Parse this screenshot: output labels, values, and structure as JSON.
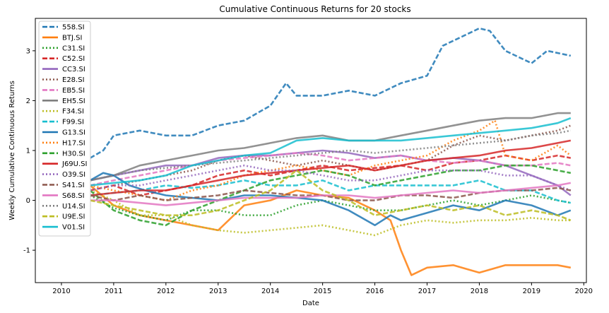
{
  "chart_data": {
    "type": "line",
    "title": "Cumulative Continuous Returns for 20 stocks",
    "xlabel": "Date",
    "ylabel": "Weekly Cumulative Continuous Returns",
    "xlim": [
      2009.5,
      2020.05
    ],
    "ylim": [
      -1.65,
      3.65
    ],
    "xticks": [
      "2010",
      "2011",
      "2012",
      "2013",
      "2014",
      "2015",
      "2016",
      "2017",
      "2018",
      "2019",
      "2020"
    ],
    "yticks": [
      "-1",
      "0",
      "1",
      "2",
      "3"
    ],
    "grid": false,
    "legend_position": "top-left",
    "series": [
      {
        "name": "558.SI",
        "color": "#1f77b4",
        "dash": "dashed",
        "x": [
          2010.55,
          2010.8,
          2011.0,
          2011.5,
          2012.0,
          2012.5,
          2013.0,
          2013.5,
          2014.0,
          2014.3,
          2014.5,
          2015.0,
          2015.5,
          2016.0,
          2016.5,
          2017.0,
          2017.3,
          2017.7,
          2018.0,
          2018.2,
          2018.5,
          2019.0,
          2019.3,
          2019.75
        ],
        "y": [
          0.85,
          1.0,
          1.3,
          1.4,
          1.3,
          1.3,
          1.5,
          1.6,
          1.9,
          2.35,
          2.1,
          2.1,
          2.2,
          2.1,
          2.35,
          2.5,
          3.1,
          3.3,
          3.45,
          3.4,
          3.0,
          2.75,
          3.0,
          2.9
        ]
      },
      {
        "name": "BTJ.SI",
        "color": "#ff7f0e",
        "dash": "solid",
        "x": [
          2010.55,
          2011.0,
          2011.5,
          2012.0,
          2012.5,
          2013.0,
          2013.5,
          2014.0,
          2014.5,
          2015.0,
          2015.5,
          2016.0,
          2016.3,
          2016.5,
          2016.7,
          2017.0,
          2017.5,
          2018.0,
          2018.5,
          2019.0,
          2019.5,
          2019.75
        ],
        "y": [
          0.3,
          -0.1,
          -0.3,
          -0.4,
          -0.5,
          -0.6,
          -0.1,
          0.0,
          0.2,
          0.1,
          0.05,
          -0.2,
          -0.4,
          -1.0,
          -1.5,
          -1.35,
          -1.3,
          -1.45,
          -1.3,
          -1.3,
          -1.3,
          -1.35
        ]
      },
      {
        "name": "C31.SI",
        "color": "#2ca02c",
        "dash": "dotted",
        "x": [
          2010.55,
          2011.0,
          2011.5,
          2012.0,
          2012.5,
          2013.0,
          2013.5,
          2014.0,
          2014.5,
          2015.0,
          2015.5,
          2016.0,
          2016.5,
          2017.0,
          2017.5,
          2018.0,
          2018.5,
          2019.0,
          2019.5,
          2019.75
        ],
        "y": [
          0.1,
          -0.15,
          -0.3,
          -0.4,
          -0.2,
          -0.2,
          -0.3,
          -0.3,
          -0.1,
          0.0,
          -0.1,
          -0.2,
          -0.2,
          -0.1,
          0.0,
          -0.1,
          0.0,
          0.1,
          0.0,
          -0.05
        ]
      },
      {
        "name": "C52.SI",
        "color": "#d62728",
        "dash": "dashed",
        "x": [
          2010.55,
          2011.0,
          2011.5,
          2012.0,
          2012.5,
          2013.0,
          2013.5,
          2014.0,
          2014.5,
          2015.0,
          2015.5,
          2016.0,
          2016.5,
          2017.0,
          2017.5,
          2018.0,
          2018.5,
          2019.0,
          2019.5,
          2019.75
        ],
        "y": [
          0.2,
          0.3,
          0.1,
          0.2,
          0.3,
          0.5,
          0.6,
          0.5,
          0.6,
          0.7,
          0.6,
          0.65,
          0.7,
          0.6,
          0.75,
          0.8,
          0.9,
          0.8,
          0.9,
          0.85
        ]
      },
      {
        "name": "CC3.SI",
        "color": "#9467bd",
        "dash": "solid",
        "x": [
          2010.55,
          2011.0,
          2011.5,
          2012.0,
          2012.5,
          2013.0,
          2013.5,
          2014.0,
          2014.5,
          2015.0,
          2015.5,
          2016.0,
          2016.5,
          2017.0,
          2017.5,
          2018.0,
          2018.5,
          2019.0,
          2019.5,
          2019.75
        ],
        "y": [
          0.4,
          0.5,
          0.6,
          0.7,
          0.7,
          0.85,
          0.9,
          0.9,
          0.95,
          1.0,
          0.95,
          0.85,
          0.9,
          0.8,
          0.85,
          0.8,
          0.7,
          0.5,
          0.3,
          0.1
        ]
      },
      {
        "name": "E28.SI",
        "color": "#8c564b",
        "dash": "dotted",
        "x": [
          2010.55,
          2011.0,
          2011.5,
          2012.0,
          2012.5,
          2013.0,
          2013.5,
          2014.0,
          2014.5,
          2015.0,
          2015.5,
          2016.0,
          2016.5,
          2017.0,
          2017.5,
          2018.0,
          2018.5,
          2019.0,
          2019.5,
          2019.75
        ],
        "y": [
          0.2,
          0.3,
          0.4,
          0.5,
          0.6,
          0.8,
          0.9,
          0.8,
          0.7,
          0.8,
          0.7,
          0.6,
          0.7,
          0.8,
          1.1,
          1.3,
          1.2,
          1.3,
          1.4,
          1.5
        ]
      },
      {
        "name": "EB5.SI",
        "color": "#e377c2",
        "dash": "dashed",
        "x": [
          2010.55,
          2011.0,
          2011.5,
          2012.0,
          2012.5,
          2013.0,
          2013.5,
          2014.0,
          2014.5,
          2015.0,
          2015.5,
          2016.0,
          2016.5,
          2017.0,
          2017.5,
          2018.0,
          2018.5,
          2019.0,
          2019.5,
          2019.75
        ],
        "y": [
          0.3,
          0.4,
          0.5,
          0.6,
          0.7,
          0.8,
          0.85,
          0.9,
          0.95,
          0.9,
          0.8,
          0.85,
          0.9,
          0.8,
          0.75,
          0.8,
          0.7,
          0.7,
          0.75,
          0.7
        ]
      },
      {
        "name": "EH5.SI",
        "color": "#7f7f7f",
        "dash": "solid",
        "x": [
          2010.55,
          2011.0,
          2011.5,
          2012.0,
          2012.5,
          2013.0,
          2013.5,
          2014.0,
          2014.5,
          2015.0,
          2015.5,
          2016.0,
          2016.5,
          2017.0,
          2017.5,
          2018.0,
          2018.5,
          2019.0,
          2019.5,
          2019.75
        ],
        "y": [
          0.4,
          0.5,
          0.7,
          0.8,
          0.9,
          1.0,
          1.05,
          1.15,
          1.25,
          1.3,
          1.2,
          1.2,
          1.3,
          1.4,
          1.5,
          1.6,
          1.65,
          1.65,
          1.75,
          1.75
        ]
      },
      {
        "name": "F34.SI",
        "color": "#bcbd22",
        "dash": "dotted",
        "x": [
          2010.55,
          2011.0,
          2011.5,
          2012.0,
          2012.5,
          2013.0,
          2013.5,
          2014.0,
          2014.5,
          2015.0,
          2015.5,
          2016.0,
          2016.5,
          2017.0,
          2017.5,
          2018.0,
          2018.5,
          2019.0,
          2019.5,
          2019.75
        ],
        "y": [
          0.2,
          0.0,
          -0.3,
          -0.3,
          -0.5,
          -0.6,
          -0.65,
          -0.6,
          -0.55,
          -0.5,
          -0.6,
          -0.7,
          -0.5,
          -0.4,
          -0.45,
          -0.4,
          -0.4,
          -0.35,
          -0.4,
          -0.4
        ]
      },
      {
        "name": "F99.SI",
        "color": "#17becf",
        "dash": "dashed",
        "x": [
          2010.55,
          2011.0,
          2011.5,
          2012.0,
          2012.5,
          2013.0,
          2013.5,
          2014.0,
          2014.5,
          2015.0,
          2015.5,
          2016.0,
          2016.5,
          2017.0,
          2017.5,
          2018.0,
          2018.5,
          2019.0,
          2019.5,
          2019.75
        ],
        "y": [
          0.1,
          0.15,
          0.2,
          0.3,
          0.25,
          0.3,
          0.4,
          0.3,
          0.3,
          0.4,
          0.2,
          0.3,
          0.3,
          0.3,
          0.3,
          0.4,
          0.2,
          0.2,
          0.0,
          -0.05
        ]
      },
      {
        "name": "G13.SI",
        "color": "#1f77b4",
        "dash": "solid",
        "x": [
          2010.55,
          2010.8,
          2011.0,
          2011.3,
          2011.6,
          2012.0,
          2012.5,
          2013.0,
          2013.5,
          2014.0,
          2014.5,
          2015.0,
          2015.5,
          2016.0,
          2016.3,
          2016.5,
          2017.0,
          2017.5,
          2018.0,
          2018.5,
          2019.0,
          2019.5,
          2019.75
        ],
        "y": [
          0.4,
          0.55,
          0.5,
          0.3,
          0.2,
          0.1,
          0.05,
          0.0,
          0.1,
          0.1,
          0.05,
          0.0,
          -0.2,
          -0.5,
          -0.3,
          -0.4,
          -0.25,
          -0.1,
          -0.2,
          0.0,
          -0.1,
          -0.3,
          -0.2
        ]
      },
      {
        "name": "H17.SI",
        "color": "#ff7f0e",
        "dash": "dotted",
        "x": [
          2010.55,
          2011.0,
          2011.5,
          2012.0,
          2012.5,
          2013.0,
          2013.5,
          2014.0,
          2014.5,
          2015.0,
          2015.5,
          2016.0,
          2016.5,
          2017.0,
          2017.5,
          2018.0,
          2018.3,
          2018.5,
          2019.0,
          2019.5,
          2019.75
        ],
        "y": [
          0.3,
          0.2,
          0.1,
          0.0,
          0.2,
          0.3,
          0.5,
          0.6,
          0.7,
          0.6,
          0.5,
          0.7,
          0.8,
          0.9,
          1.2,
          1.4,
          1.6,
          0.9,
          0.8,
          1.1,
          0.9
        ]
      },
      {
        "name": "H30.SI",
        "color": "#2ca02c",
        "dash": "dashed",
        "x": [
          2010.55,
          2011.0,
          2011.5,
          2012.0,
          2012.5,
          2013.0,
          2013.5,
          2014.0,
          2014.5,
          2015.0,
          2015.5,
          2016.0,
          2016.5,
          2017.0,
          2017.5,
          2018.0,
          2018.5,
          2019.0,
          2019.5,
          2019.75
        ],
        "y": [
          0.2,
          -0.2,
          -0.4,
          -0.5,
          -0.2,
          0.0,
          0.2,
          0.4,
          0.5,
          0.6,
          0.5,
          0.3,
          0.4,
          0.5,
          0.6,
          0.6,
          0.7,
          0.7,
          0.6,
          0.55
        ]
      },
      {
        "name": "J69U.SI",
        "color": "#d62728",
        "dash": "solid",
        "x": [
          2010.55,
          2011.0,
          2011.5,
          2012.0,
          2012.5,
          2013.0,
          2013.5,
          2014.0,
          2014.5,
          2015.0,
          2015.5,
          2016.0,
          2016.5,
          2017.0,
          2017.5,
          2018.0,
          2018.5,
          2019.0,
          2019.5,
          2019.75
        ],
        "y": [
          0.1,
          0.15,
          0.2,
          0.2,
          0.3,
          0.4,
          0.5,
          0.55,
          0.6,
          0.65,
          0.7,
          0.6,
          0.7,
          0.8,
          0.85,
          0.9,
          1.0,
          1.05,
          1.15,
          1.2
        ]
      },
      {
        "name": "O39.SI",
        "color": "#9467bd",
        "dash": "dotted",
        "x": [
          2010.55,
          2011.0,
          2011.5,
          2012.0,
          2012.5,
          2013.0,
          2013.5,
          2014.0,
          2014.5,
          2015.0,
          2015.5,
          2016.0,
          2016.5,
          2017.0,
          2017.5,
          2018.0,
          2018.5,
          2019.0,
          2019.5,
          2019.75
        ],
        "y": [
          0.2,
          0.3,
          0.3,
          0.4,
          0.5,
          0.6,
          0.7,
          0.6,
          0.6,
          0.5,
          0.4,
          0.4,
          0.5,
          0.6,
          0.6,
          0.6,
          0.5,
          0.5,
          0.3,
          0.2
        ]
      },
      {
        "name": "S41.SI",
        "color": "#8c564b",
        "dash": "dashed",
        "x": [
          2010.55,
          2011.0,
          2011.5,
          2012.0,
          2012.5,
          2013.0,
          2013.5,
          2014.0,
          2014.5,
          2015.0,
          2015.5,
          2016.0,
          2016.5,
          2017.0,
          2017.5,
          2018.0,
          2018.5,
          2019.0,
          2019.5,
          2019.75
        ],
        "y": [
          0.1,
          0.0,
          0.1,
          0.0,
          0.05,
          0.1,
          0.2,
          0.15,
          0.1,
          0.1,
          0.0,
          0.0,
          0.1,
          0.1,
          0.05,
          0.15,
          0.2,
          0.2,
          0.25,
          0.2
        ]
      },
      {
        "name": "S68.SI",
        "color": "#e377c2",
        "dash": "solid",
        "x": [
          2010.55,
          2011.0,
          2011.5,
          2012.0,
          2012.5,
          2013.0,
          2013.5,
          2014.0,
          2014.5,
          2015.0,
          2015.5,
          2016.0,
          2016.5,
          2017.0,
          2017.5,
          2018.0,
          2018.5,
          2019.0,
          2019.5,
          2019.75
        ],
        "y": [
          0.0,
          0.0,
          -0.05,
          -0.1,
          -0.05,
          0.0,
          0.05,
          0.05,
          0.05,
          0.1,
          0.1,
          0.05,
          0.1,
          0.15,
          0.2,
          0.15,
          0.2,
          0.25,
          0.3,
          0.35
        ]
      },
      {
        "name": "U14.SI",
        "color": "#7f7f7f",
        "dash": "dotted",
        "x": [
          2010.55,
          2011.0,
          2011.5,
          2012.0,
          2012.5,
          2013.0,
          2013.5,
          2014.0,
          2014.5,
          2015.0,
          2015.5,
          2016.0,
          2016.5,
          2017.0,
          2017.5,
          2018.0,
          2018.5,
          2019.0,
          2019.5,
          2019.75
        ],
        "y": [
          0.4,
          0.5,
          0.6,
          0.65,
          0.7,
          0.75,
          0.8,
          0.85,
          0.9,
          0.95,
          1.0,
          0.95,
          1.0,
          1.05,
          1.1,
          1.15,
          1.2,
          1.3,
          1.35,
          1.4
        ]
      },
      {
        "name": "U9E.SI",
        "color": "#bcbd22",
        "dash": "dashed",
        "x": [
          2010.55,
          2011.0,
          2011.5,
          2012.0,
          2012.5,
          2013.0,
          2013.5,
          2014.0,
          2014.5,
          2015.0,
          2015.5,
          2016.0,
          2016.5,
          2017.0,
          2017.5,
          2018.0,
          2018.5,
          2019.0,
          2019.5,
          2019.75
        ],
        "y": [
          0.0,
          -0.1,
          -0.2,
          -0.3,
          -0.3,
          -0.2,
          0.0,
          0.2,
          0.6,
          0.2,
          0.0,
          -0.3,
          -0.2,
          -0.1,
          -0.2,
          -0.1,
          -0.3,
          -0.2,
          -0.3,
          -0.4
        ]
      },
      {
        "name": "V01.SI",
        "color": "#17becf",
        "dash": "solid",
        "x": [
          2010.55,
          2011.0,
          2011.5,
          2012.0,
          2012.5,
          2013.0,
          2013.5,
          2014.0,
          2014.5,
          2015.0,
          2015.5,
          2016.0,
          2016.5,
          2017.0,
          2017.5,
          2018.0,
          2018.5,
          2019.0,
          2019.5,
          2019.75
        ],
        "y": [
          0.3,
          0.35,
          0.4,
          0.5,
          0.7,
          0.8,
          0.9,
          0.95,
          1.2,
          1.25,
          1.2,
          1.2,
          1.2,
          1.25,
          1.3,
          1.35,
          1.4,
          1.45,
          1.55,
          1.65
        ]
      }
    ]
  }
}
